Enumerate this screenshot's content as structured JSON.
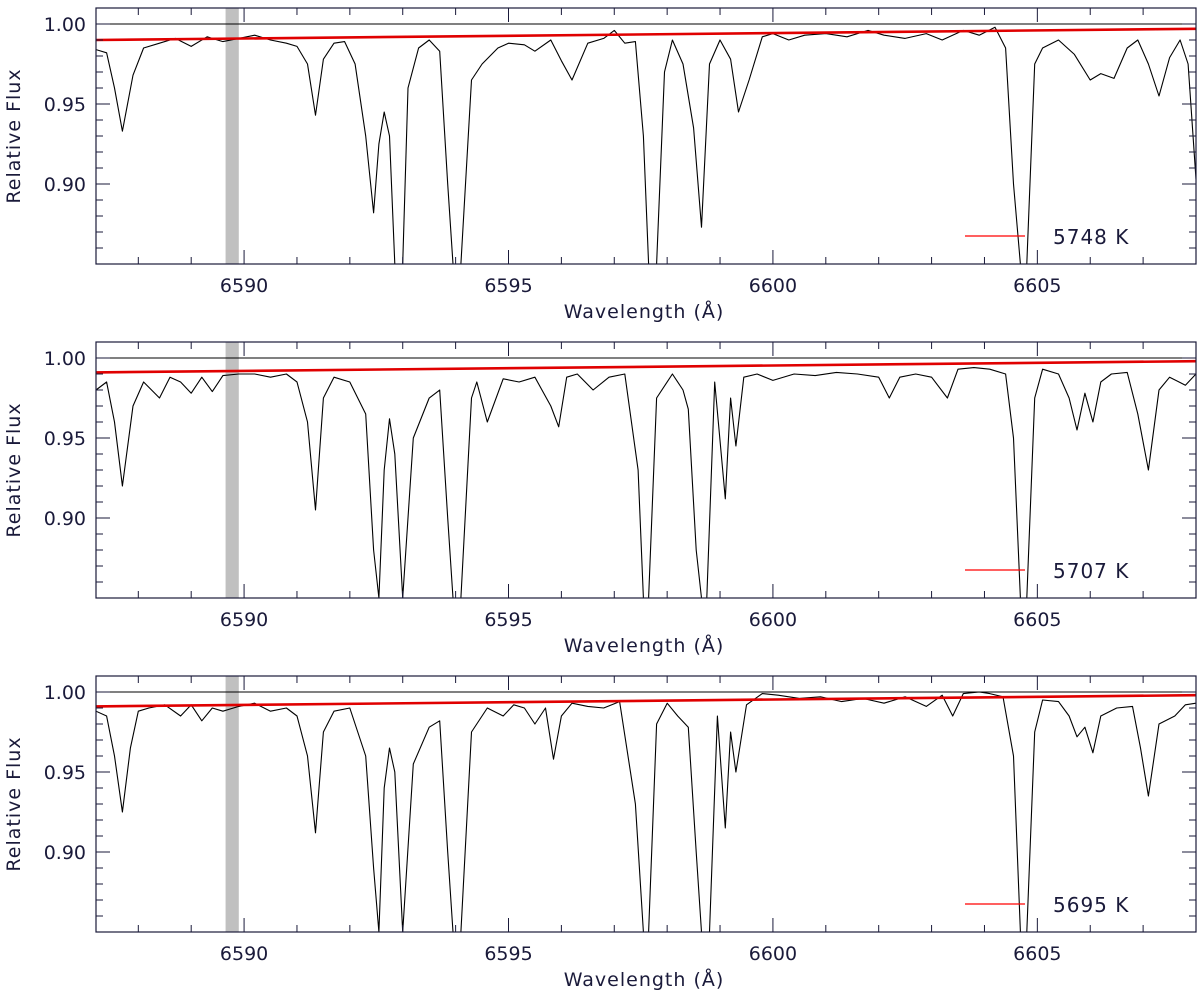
{
  "colors": {
    "spectrum": "#000000",
    "continuum": "#e00000",
    "reference": "#000000",
    "band": "#c0c0c0",
    "axes": "#1a1a3a",
    "legend_line": "#ff0000"
  },
  "chart_data": [
    {
      "type": "line",
      "xlabel": "Wavelength (Å)",
      "ylabel": "Relative Flux",
      "xlim": [
        6587.2,
        6608.0
      ],
      "ylim": [
        0.85,
        1.01
      ],
      "xticks": [
        6590,
        6595,
        6600,
        6605
      ],
      "xtick_labels": [
        "6590",
        "6595",
        "6600",
        "6605"
      ],
      "yticks": [
        0.9,
        0.95,
        1.0
      ],
      "ytick_labels": [
        "0.90",
        "0.95",
        "1.00"
      ],
      "legend": "5748 K",
      "legend_position": "bottom-right",
      "reference_level": 1.0,
      "shaded_band": [
        6589.65,
        6589.9
      ],
      "series": [
        {
          "role": "continuum",
          "x": [
            6587.2,
            6608.0
          ],
          "y": [
            0.99,
            0.997
          ]
        },
        {
          "role": "spectrum",
          "x": [
            6587.2,
            6587.4,
            6587.55,
            6587.7,
            6587.9,
            6588.1,
            6588.4,
            6588.7,
            6589.0,
            6589.3,
            6589.6,
            6589.9,
            6590.2,
            6590.5,
            6590.8,
            6591.0,
            6591.2,
            6591.35,
            6591.5,
            6591.7,
            6591.9,
            6592.1,
            6592.3,
            6592.45,
            6592.55,
            6592.65,
            6592.75,
            6592.85,
            6593.0,
            6593.1,
            6593.3,
            6593.5,
            6593.7,
            6593.85,
            6593.95,
            6594.1,
            6594.3,
            6594.5,
            6594.8,
            6595.0,
            6595.3,
            6595.5,
            6595.8,
            6596.0,
            6596.2,
            6596.5,
            6596.8,
            6597.0,
            6597.2,
            6597.4,
            6597.55,
            6597.65,
            6597.8,
            6597.95,
            6598.1,
            6598.3,
            6598.5,
            6598.65,
            6598.8,
            6599.0,
            6599.2,
            6599.35,
            6599.55,
            6599.8,
            6600.0,
            6600.3,
            6600.6,
            6601.0,
            6601.4,
            6601.8,
            6602.1,
            6602.5,
            6602.9,
            6603.2,
            6603.6,
            6603.9,
            6604.2,
            6604.4,
            6604.55,
            6604.68,
            6604.8,
            6604.95,
            6605.1,
            6605.4,
            6605.7,
            6606.0,
            6606.2,
            6606.45,
            6606.7,
            6606.9,
            6607.1,
            6607.3,
            6607.5,
            6607.7,
            6607.85,
            6608.0
          ],
          "y": [
            0.984,
            0.982,
            0.96,
            0.933,
            0.968,
            0.985,
            0.988,
            0.991,
            0.986,
            0.992,
            0.989,
            0.991,
            0.993,
            0.99,
            0.988,
            0.986,
            0.975,
            0.943,
            0.978,
            0.988,
            0.989,
            0.975,
            0.93,
            0.882,
            0.925,
            0.945,
            0.93,
            0.85,
            0.85,
            0.96,
            0.985,
            0.99,
            0.983,
            0.9,
            0.85,
            0.85,
            0.965,
            0.975,
            0.985,
            0.988,
            0.987,
            0.983,
            0.99,
            0.977,
            0.965,
            0.988,
            0.991,
            0.996,
            0.988,
            0.989,
            0.93,
            0.85,
            0.85,
            0.97,
            0.99,
            0.975,
            0.935,
            0.873,
            0.975,
            0.99,
            0.978,
            0.945,
            0.965,
            0.992,
            0.994,
            0.99,
            0.993,
            0.994,
            0.992,
            0.996,
            0.993,
            0.991,
            0.994,
            0.99,
            0.996,
            0.993,
            0.998,
            0.985,
            0.9,
            0.85,
            0.85,
            0.975,
            0.985,
            0.99,
            0.981,
            0.965,
            0.969,
            0.966,
            0.985,
            0.99,
            0.975,
            0.955,
            0.979,
            0.99,
            0.975,
            0.903
          ]
        }
      ]
    },
    {
      "type": "line",
      "xlabel": "Wavelength (Å)",
      "ylabel": "Relative Flux",
      "xlim": [
        6587.2,
        6608.0
      ],
      "ylim": [
        0.85,
        1.01
      ],
      "xticks": [
        6590,
        6595,
        6600,
        6605
      ],
      "xtick_labels": [
        "6590",
        "6595",
        "6600",
        "6605"
      ],
      "yticks": [
        0.9,
        0.95,
        1.0
      ],
      "ytick_labels": [
        "0.90",
        "0.95",
        "1.00"
      ],
      "legend": "5707 K",
      "legend_position": "bottom-right",
      "reference_level": 1.0,
      "shaded_band": [
        6589.65,
        6589.9
      ],
      "series": [
        {
          "role": "continuum",
          "x": [
            6587.2,
            6608.0
          ],
          "y": [
            0.991,
            0.998
          ]
        },
        {
          "role": "spectrum",
          "x": [
            6587.2,
            6587.4,
            6587.55,
            6587.7,
            6587.9,
            6588.1,
            6588.4,
            6588.6,
            6588.8,
            6589.0,
            6589.2,
            6589.4,
            6589.6,
            6589.9,
            6590.2,
            6590.5,
            6590.8,
            6591.0,
            6591.2,
            6591.35,
            6591.5,
            6591.7,
            6592.0,
            6592.3,
            6592.45,
            6592.55,
            6592.65,
            6592.75,
            6592.85,
            6593.0,
            6593.2,
            6593.5,
            6593.7,
            6593.85,
            6593.95,
            6594.1,
            6594.3,
            6594.4,
            6594.6,
            6594.9,
            6595.2,
            6595.5,
            6595.8,
            6595.95,
            6596.1,
            6596.3,
            6596.6,
            6596.9,
            6597.2,
            6597.45,
            6597.55,
            6597.65,
            6597.8,
            6598.1,
            6598.3,
            6598.4,
            6598.55,
            6598.65,
            6598.75,
            6598.9,
            6599.1,
            6599.2,
            6599.3,
            6599.45,
            6599.7,
            6600.0,
            6600.4,
            6600.8,
            6601.2,
            6601.6,
            6602.0,
            6602.2,
            6602.4,
            6602.7,
            6603.0,
            6603.3,
            6603.5,
            6603.8,
            6604.1,
            6604.4,
            6604.55,
            6604.68,
            6604.8,
            6604.95,
            6605.1,
            6605.4,
            6605.6,
            6605.75,
            6605.9,
            6606.05,
            6606.2,
            6606.4,
            6606.7,
            6606.9,
            6607.1,
            6607.3,
            6607.5,
            6607.8,
            6608.0
          ],
          "y": [
            0.98,
            0.985,
            0.96,
            0.92,
            0.97,
            0.985,
            0.975,
            0.988,
            0.985,
            0.978,
            0.988,
            0.979,
            0.989,
            0.99,
            0.99,
            0.988,
            0.99,
            0.985,
            0.96,
            0.905,
            0.975,
            0.988,
            0.985,
            0.965,
            0.88,
            0.85,
            0.93,
            0.962,
            0.94,
            0.85,
            0.95,
            0.975,
            0.98,
            0.9,
            0.85,
            0.85,
            0.975,
            0.985,
            0.96,
            0.987,
            0.985,
            0.988,
            0.97,
            0.957,
            0.988,
            0.99,
            0.98,
            0.988,
            0.99,
            0.93,
            0.85,
            0.85,
            0.975,
            0.99,
            0.98,
            0.968,
            0.88,
            0.85,
            0.85,
            0.985,
            0.912,
            0.975,
            0.945,
            0.988,
            0.99,
            0.986,
            0.99,
            0.989,
            0.991,
            0.99,
            0.988,
            0.975,
            0.988,
            0.99,
            0.988,
            0.975,
            0.993,
            0.994,
            0.993,
            0.99,
            0.95,
            0.85,
            0.85,
            0.975,
            0.993,
            0.99,
            0.975,
            0.955,
            0.978,
            0.96,
            0.985,
            0.99,
            0.991,
            0.965,
            0.93,
            0.98,
            0.988,
            0.983,
            0.99
          ]
        }
      ]
    },
    {
      "type": "line",
      "xlabel": "Wavelength (Å)",
      "ylabel": "Relative Flux",
      "xlim": [
        6587.2,
        6608.0
      ],
      "ylim": [
        0.85,
        1.01
      ],
      "xticks": [
        6590,
        6595,
        6600,
        6605
      ],
      "xtick_labels": [
        "6590",
        "6595",
        "6600",
        "6605"
      ],
      "yticks": [
        0.9,
        0.95,
        1.0
      ],
      "ytick_labels": [
        "0.90",
        "0.95",
        "1.00"
      ],
      "legend": "5695 K",
      "legend_position": "bottom-right",
      "reference_level": 1.0,
      "shaded_band": [
        6589.65,
        6589.9
      ],
      "series": [
        {
          "role": "continuum",
          "x": [
            6587.2,
            6608.0
          ],
          "y": [
            0.991,
            0.998
          ]
        },
        {
          "role": "spectrum",
          "x": [
            6587.2,
            6587.4,
            6587.55,
            6587.7,
            6587.85,
            6588.0,
            6588.2,
            6588.5,
            6588.8,
            6589.0,
            6589.2,
            6589.4,
            6589.6,
            6589.9,
            6590.2,
            6590.5,
            6590.8,
            6591.0,
            6591.2,
            6591.35,
            6591.5,
            6591.7,
            6592.0,
            6592.3,
            6592.45,
            6592.55,
            6592.65,
            6592.75,
            6592.85,
            6593.0,
            6593.2,
            6593.5,
            6593.7,
            6593.85,
            6593.95,
            6594.1,
            6594.3,
            6594.6,
            6594.9,
            6595.1,
            6595.3,
            6595.5,
            6595.7,
            6595.85,
            6596.0,
            6596.2,
            6596.5,
            6596.8,
            6597.1,
            6597.4,
            6597.55,
            6597.65,
            6597.8,
            6598.0,
            6598.2,
            6598.4,
            6598.55,
            6598.65,
            6598.8,
            6598.95,
            6599.1,
            6599.2,
            6599.3,
            6599.5,
            6599.8,
            6600.1,
            6600.5,
            6600.9,
            6601.3,
            6601.7,
            6602.1,
            6602.5,
            6602.9,
            6603.2,
            6603.4,
            6603.6,
            6603.9,
            6604.1,
            6604.35,
            6604.55,
            6604.68,
            6604.8,
            6604.95,
            6605.1,
            6605.4,
            6605.6,
            6605.75,
            6605.9,
            6606.05,
            6606.2,
            6606.5,
            6606.8,
            6606.95,
            6607.1,
            6607.3,
            6607.6,
            6607.8,
            6608.0
          ],
          "y": [
            0.988,
            0.985,
            0.96,
            0.925,
            0.965,
            0.988,
            0.99,
            0.992,
            0.985,
            0.992,
            0.982,
            0.99,
            0.988,
            0.991,
            0.993,
            0.988,
            0.99,
            0.985,
            0.96,
            0.912,
            0.975,
            0.988,
            0.99,
            0.96,
            0.89,
            0.85,
            0.94,
            0.965,
            0.95,
            0.85,
            0.955,
            0.978,
            0.982,
            0.9,
            0.85,
            0.85,
            0.975,
            0.99,
            0.985,
            0.992,
            0.99,
            0.98,
            0.99,
            0.958,
            0.985,
            0.993,
            0.991,
            0.99,
            0.994,
            0.93,
            0.85,
            0.85,
            0.98,
            0.993,
            0.985,
            0.978,
            0.9,
            0.85,
            0.85,
            0.985,
            0.915,
            0.975,
            0.95,
            0.992,
            0.999,
            0.998,
            0.996,
            0.997,
            0.994,
            0.996,
            0.993,
            0.997,
            0.991,
            0.998,
            0.985,
            0.999,
            1.0,
            0.999,
            0.997,
            0.96,
            0.85,
            0.85,
            0.975,
            0.995,
            0.994,
            0.985,
            0.972,
            0.978,
            0.962,
            0.985,
            0.99,
            0.991,
            0.965,
            0.935,
            0.98,
            0.985,
            0.992,
            0.993
          ]
        }
      ]
    }
  ]
}
